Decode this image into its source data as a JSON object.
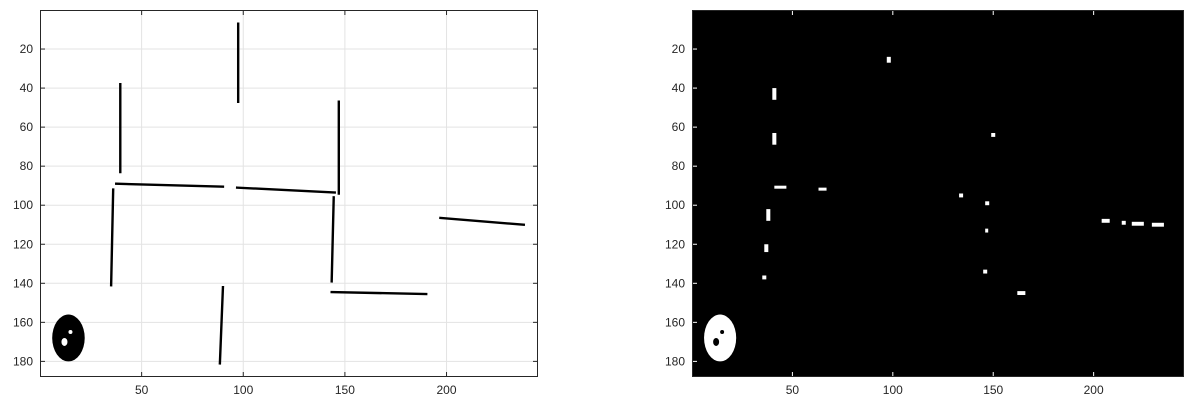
{
  "chart_data": [
    {
      "type": "heatmap",
      "title": "",
      "xlabel": "",
      "ylabel": "",
      "colormap": "gray",
      "background": "#ffffff",
      "foreground": "#000000",
      "grid": true,
      "xlim": [
        0,
        245
      ],
      "ylim": [
        188,
        0
      ],
      "y_reversed": true,
      "xticks": [
        50,
        100,
        150,
        200
      ],
      "yticks": [
        20,
        40,
        60,
        80,
        100,
        120,
        140,
        160,
        180
      ],
      "segments": [
        {
          "x1": 97.5,
          "y1": 7,
          "x2": 97.5,
          "y2": 47
        },
        {
          "x1": 39.5,
          "y1": 38,
          "x2": 39.5,
          "y2": 83
        },
        {
          "x1": 37.5,
          "y1": 89,
          "x2": 90,
          "y2": 90.5
        },
        {
          "x1": 97,
          "y1": 91,
          "x2": 145,
          "y2": 93.5
        },
        {
          "x1": 147,
          "y1": 47,
          "x2": 147,
          "y2": 94
        },
        {
          "x1": 36,
          "y1": 92,
          "x2": 35,
          "y2": 141
        },
        {
          "x1": 144.5,
          "y1": 96,
          "x2": 143.5,
          "y2": 139
        },
        {
          "x1": 143.5,
          "y1": 144.5,
          "x2": 190,
          "y2": 145.5
        },
        {
          "x1": 197,
          "y1": 106.5,
          "x2": 238,
          "y2": 110
        },
        {
          "x1": 90,
          "y1": 142,
          "x2": 88.5,
          "y2": 181
        }
      ],
      "blobs": [
        {
          "cx": 14,
          "cy": 168,
          "rx": 8,
          "ry": 12
        }
      ]
    },
    {
      "type": "heatmap",
      "title": "",
      "xlabel": "",
      "ylabel": "",
      "colormap": "gray",
      "background": "#000000",
      "foreground": "#ffffff",
      "grid": false,
      "xlim": [
        0,
        245
      ],
      "ylim": [
        188,
        0
      ],
      "y_reversed": true,
      "xticks": [
        50,
        100,
        150,
        200
      ],
      "yticks": [
        20,
        40,
        60,
        80,
        100,
        120,
        140,
        160,
        180
      ],
      "pixels": [
        {
          "x": 97,
          "y": 24,
          "w": 2,
          "h": 3
        },
        {
          "x": 40,
          "y": 40,
          "w": 2,
          "h": 6
        },
        {
          "x": 40,
          "y": 63,
          "w": 2,
          "h": 6
        },
        {
          "x": 149,
          "y": 63,
          "w": 2,
          "h": 2
        },
        {
          "x": 41,
          "y": 90,
          "w": 6,
          "h": 1.5
        },
        {
          "x": 63,
          "y": 91,
          "w": 4,
          "h": 1.5
        },
        {
          "x": 133,
          "y": 94,
          "w": 2,
          "h": 2
        },
        {
          "x": 146,
          "y": 98,
          "w": 2,
          "h": 2
        },
        {
          "x": 37,
          "y": 102,
          "w": 2,
          "h": 6
        },
        {
          "x": 146,
          "y": 112,
          "w": 1.5,
          "h": 2
        },
        {
          "x": 36,
          "y": 120,
          "w": 2,
          "h": 4
        },
        {
          "x": 204,
          "y": 107,
          "w": 4,
          "h": 2
        },
        {
          "x": 214,
          "y": 108,
          "w": 2,
          "h": 2
        },
        {
          "x": 219,
          "y": 108.5,
          "w": 6,
          "h": 2
        },
        {
          "x": 229,
          "y": 109,
          "w": 6,
          "h": 2
        },
        {
          "x": 145,
          "y": 133,
          "w": 2,
          "h": 2
        },
        {
          "x": 35,
          "y": 136,
          "w": 2,
          "h": 2
        },
        {
          "x": 162,
          "y": 144,
          "w": 4,
          "h": 2
        }
      ],
      "blobs": [
        {
          "cx": 14,
          "cy": 168,
          "rx": 8,
          "ry": 12
        }
      ]
    }
  ]
}
